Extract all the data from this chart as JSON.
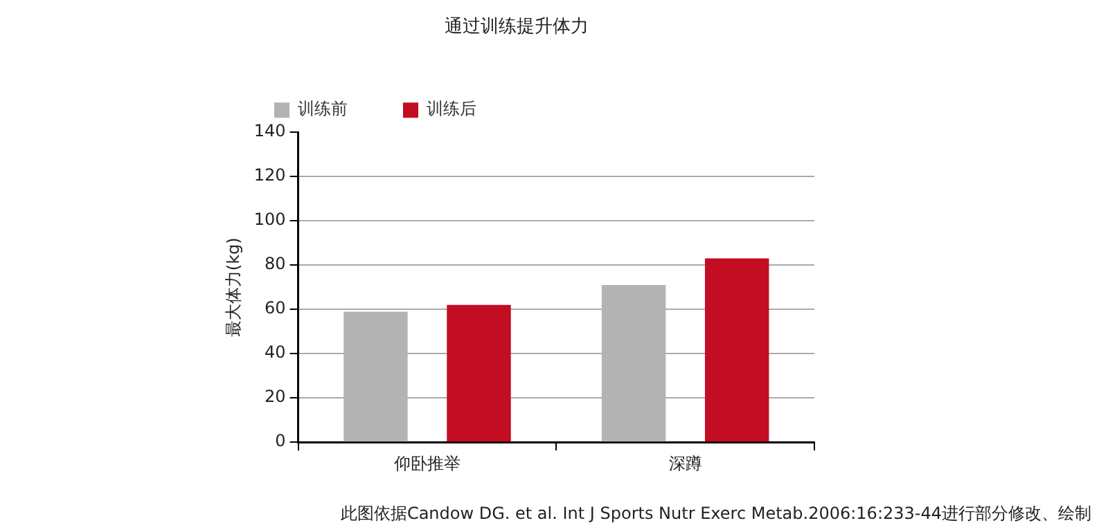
{
  "chart_data": {
    "type": "bar",
    "title": "通过训练提升体力",
    "ylabel": "最大体力(kg)",
    "categories": [
      "仰卧推举",
      "深蹲"
    ],
    "series": [
      {
        "name": "训练前",
        "color": "#b3b3b3",
        "values": [
          59,
          71
        ]
      },
      {
        "name": "训练后",
        "color": "#c30d23",
        "values": [
          62,
          83
        ]
      }
    ],
    "ylim": [
      0,
      140
    ],
    "yticks": [
      0,
      20,
      40,
      60,
      80,
      100,
      120,
      140
    ],
    "grid": "y",
    "legend": "top left",
    "annotations": [
      "此图依据Candow DG. et al. Int J Sports Nutr Exerc Metab.2006:16:233-44进行部分修改、绘制"
    ]
  }
}
